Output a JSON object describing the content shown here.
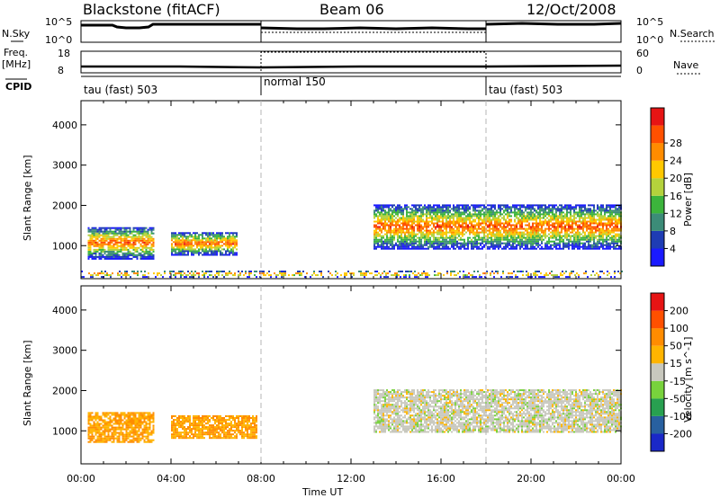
{
  "header": {
    "station": "Blackstone (fitACF)",
    "beam": "Beam 06",
    "date": "12/Oct/2008"
  },
  "sky_panel": {
    "left_label": "N.Sky",
    "right_label": "N.Search",
    "left_ticks": [
      "10^5",
      "10^0"
    ],
    "right_ticks": [
      "10^5",
      "10^0"
    ]
  },
  "freq_panel": {
    "left_label": "Freq.",
    "left_unit": "[MHz]",
    "right_label": "Nave",
    "left_ticks": [
      "18",
      "8"
    ],
    "right_ticks": [
      "60",
      "0"
    ]
  },
  "cpid_panel": {
    "label": "CPID",
    "modes": [
      {
        "name": "tau (fast) 503",
        "start_hour": 0,
        "end_hour": 8
      },
      {
        "name": "normal 150",
        "start_hour": 8,
        "end_hour": 18
      },
      {
        "name": "tau (fast) 503",
        "start_hour": 18,
        "end_hour": 24
      }
    ]
  },
  "chart_data": [
    {
      "type": "heatmap",
      "title": "",
      "xlabel": "Time UT",
      "ylabel": "Slant Range [km]",
      "xlim": [
        0,
        24
      ],
      "ylim": [
        180,
        4600
      ],
      "x_ticks": [
        "00:00",
        "04:00",
        "08:00",
        "12:00",
        "16:00",
        "20:00",
        "00:00"
      ],
      "y_ticks": [
        1000,
        2000,
        3000,
        4000
      ],
      "colorbar": {
        "label": "Power [dB]",
        "ticks": [
          "4",
          "8",
          "12",
          "16",
          "20",
          "24",
          "28"
        ],
        "levels": [
          0,
          4,
          8,
          12,
          16,
          20,
          24,
          28,
          32
        ],
        "colors": [
          "#1a1aff",
          "#1e3cb4",
          "#3c8c78",
          "#3cb43c",
          "#b4d23c",
          "#ffc800",
          "#ff8c00",
          "#ff5000",
          "#e61414"
        ]
      },
      "regions": [
        {
          "t0": 0.3,
          "t1": 3.2,
          "r0": 650,
          "r1": 1450
        },
        {
          "t0": 4.0,
          "t1": 6.9,
          "r0": 750,
          "r1": 1320
        },
        {
          "t0": 13.0,
          "t1": 24.0,
          "r0": 900,
          "r1": 2000
        },
        {
          "t0": 0.0,
          "t1": 24.0,
          "r0": 200,
          "r1": 350
        }
      ]
    },
    {
      "type": "heatmap",
      "title": "",
      "xlabel": "Time UT",
      "ylabel": "Slant Range [km]",
      "xlim": [
        0,
        24
      ],
      "ylim": [
        180,
        4600
      ],
      "x_ticks": [
        "00:00",
        "04:00",
        "08:00",
        "12:00",
        "16:00",
        "20:00",
        "00:00"
      ],
      "y_ticks": [
        1000,
        2000,
        3000,
        4000
      ],
      "colorbar": {
        "label": "Velocity [m s^-1]",
        "ticks": [
          "200",
          "100",
          "50",
          "15",
          "-15",
          "-50",
          "-100",
          "-200"
        ],
        "colors": [
          "#1a28c8",
          "#2860a0",
          "#28a050",
          "#78d23c",
          "#c8c8be",
          "#ffb400",
          "#ff8c00",
          "#ff5000",
          "#e61414"
        ]
      },
      "regions": [
        {
          "t0": 0.3,
          "t1": 3.2,
          "r0": 700,
          "r1": 1450
        },
        {
          "t0": 4.0,
          "t1": 7.8,
          "r0": 800,
          "r1": 1350
        },
        {
          "t0": 13.0,
          "t1": 24.0,
          "r0": 950,
          "r1": 2000
        }
      ]
    }
  ]
}
